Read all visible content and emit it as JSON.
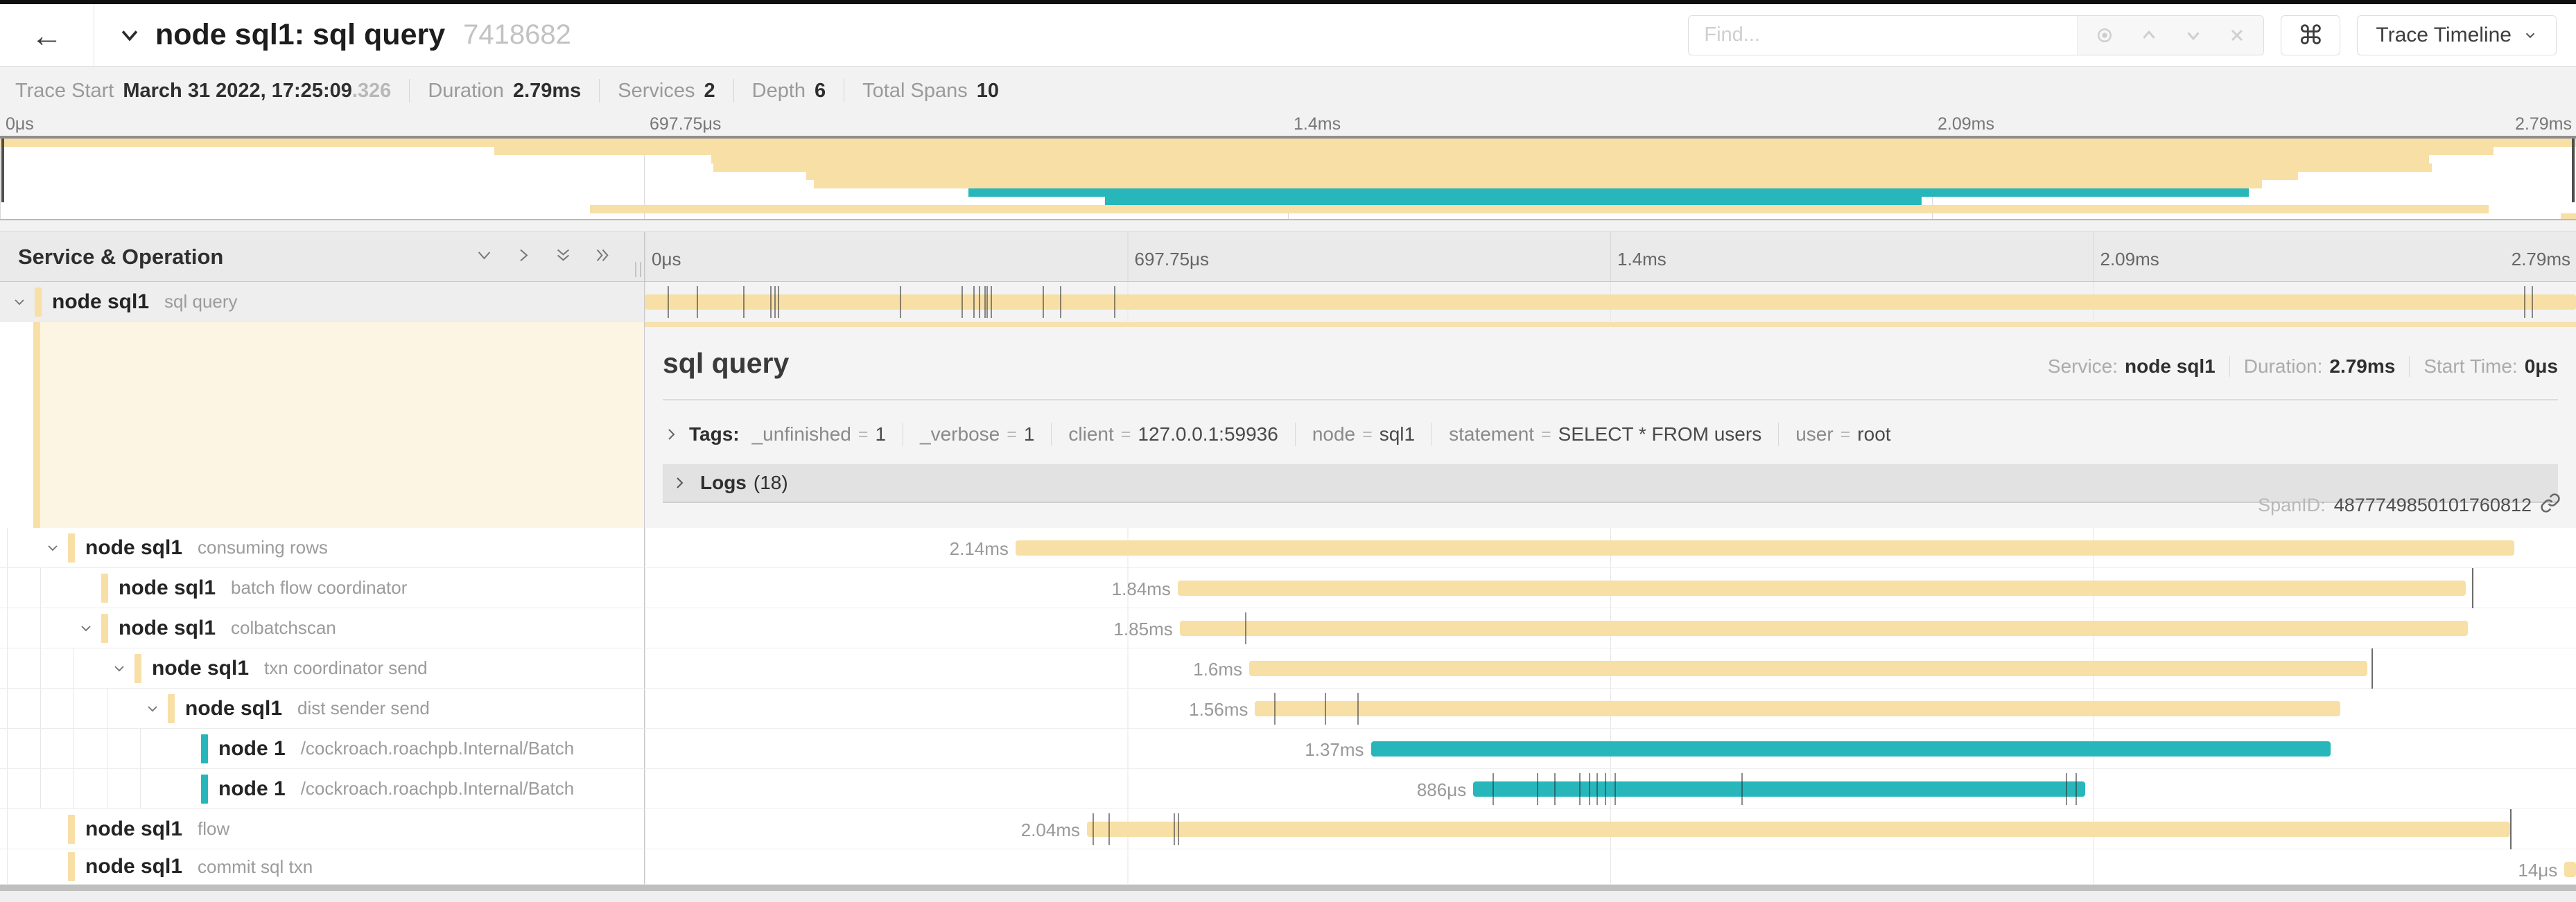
{
  "colors": {
    "tan": "#F7DFA6",
    "teal": "#27B7BB"
  },
  "header": {
    "back_icon": "←",
    "title": "node sql1: sql query",
    "trace_id": "7418682",
    "find_placeholder": "Find...",
    "command_symbol": "⌘",
    "view_button": "Trace Timeline"
  },
  "trace_info": {
    "start_label": "Trace Start",
    "start_value": "March 31 2022, 17:25:09",
    "start_fraction": ".326",
    "duration_label": "Duration",
    "duration_value": "2.79ms",
    "services_label": "Services",
    "services_value": "2",
    "depth_label": "Depth",
    "depth_value": "6",
    "spans_label": "Total Spans",
    "spans_value": "10"
  },
  "timeline_ticks": [
    "0μs",
    "697.75μs",
    "1.4ms",
    "2.09ms",
    "2.79ms"
  ],
  "left_header": {
    "title": "Service & Operation"
  },
  "detail": {
    "title": "sql query",
    "service_label": "Service:",
    "service_value": "node sql1",
    "duration_label": "Duration:",
    "duration_value": "2.79ms",
    "start_label": "Start Time:",
    "start_value": "0μs",
    "tags_label": "Tags:",
    "tag_equals": "=",
    "tags": [
      {
        "key": "_unfinished",
        "value": "1"
      },
      {
        "key": "_verbose",
        "value": "1"
      },
      {
        "key": "client",
        "value": "127.0.0.1:59936"
      },
      {
        "key": "node",
        "value": "sql1"
      },
      {
        "key": "statement",
        "value": "SELECT * FROM users"
      },
      {
        "key": "user",
        "value": "root"
      }
    ],
    "logs_label": "Logs",
    "logs_count": "(18)",
    "span_id_label": "SpanID:",
    "span_id": "4877749850101760812"
  },
  "rows": [
    {
      "service": "node sql1",
      "operation": "sql query",
      "depth": 0,
      "expandable": true,
      "color": "tan",
      "selected": true,
      "start": 0,
      "end": 100,
      "label": "",
      "ticks": [
        1.2,
        2.7,
        5.1,
        6.5,
        6.7,
        6.9,
        13.2,
        16.4,
        17.0,
        17.3,
        17.6,
        17.7,
        17.9,
        20.6,
        21.5,
        24.3,
        97.3,
        97.7
      ],
      "tall_ticks": []
    },
    {
      "service": "node sql1",
      "operation": "consuming rows",
      "depth": 1,
      "expandable": true,
      "color": "tan",
      "selected": false,
      "start": 19.2,
      "end": 96.8,
      "label": "2.14ms",
      "ticks": [],
      "tall_ticks": []
    },
    {
      "service": "node sql1",
      "operation": "batch flow coordinator",
      "depth": 2,
      "expandable": false,
      "color": "tan",
      "selected": false,
      "start": 27.6,
      "end": 94.3,
      "label": "1.84ms",
      "ticks": [],
      "tall_ticks": [
        94.6
      ]
    },
    {
      "service": "node sql1",
      "operation": "colbatchscan",
      "depth": 2,
      "expandable": true,
      "color": "tan",
      "selected": false,
      "start": 27.7,
      "end": 94.4,
      "label": "1.85ms",
      "ticks": [
        31.1
      ],
      "tall_ticks": []
    },
    {
      "service": "node sql1",
      "operation": "txn coordinator send",
      "depth": 3,
      "expandable": true,
      "color": "tan",
      "selected": false,
      "start": 31.3,
      "end": 89.2,
      "label": "1.6ms",
      "ticks": [],
      "tall_ticks": [
        89.4
      ]
    },
    {
      "service": "node sql1",
      "operation": "dist sender send",
      "depth": 4,
      "expandable": true,
      "color": "tan",
      "selected": false,
      "start": 31.6,
      "end": 87.8,
      "label": "1.56ms",
      "ticks": [
        32.6,
        35.2,
        36.9
      ],
      "tall_ticks": []
    },
    {
      "service": "node 1",
      "operation": "/cockroach.roachpb.Internal/Batch",
      "depth": 5,
      "expandable": false,
      "color": "teal",
      "selected": false,
      "start": 37.6,
      "end": 87.3,
      "label": "1.37ms",
      "ticks": [],
      "tall_ticks": []
    },
    {
      "service": "node 1",
      "operation": "/cockroach.roachpb.Internal/Batch",
      "depth": 5,
      "expandable": false,
      "color": "teal",
      "selected": false,
      "start": 42.9,
      "end": 74.6,
      "label": "886μs",
      "ticks": [
        43.9,
        46.2,
        47.1,
        48.4,
        48.9,
        49.3,
        49.7,
        50.2,
        56.8,
        73.6,
        74.1
      ],
      "tall_ticks": []
    },
    {
      "service": "node sql1",
      "operation": "flow",
      "depth": 1,
      "expandable": false,
      "color": "tan",
      "selected": false,
      "start": 22.9,
      "end": 96.6,
      "label": "2.04ms",
      "ticks": [
        23.2,
        24.0,
        27.4,
        27.6
      ],
      "tall_ticks": [
        96.6
      ]
    },
    {
      "service": "node sql1",
      "operation": "commit sql txn",
      "depth": 1,
      "expandable": false,
      "color": "tan",
      "selected": false,
      "start": 99.4,
      "end": 100,
      "label": "14μs",
      "ticks": [],
      "tall_ticks": []
    }
  ]
}
